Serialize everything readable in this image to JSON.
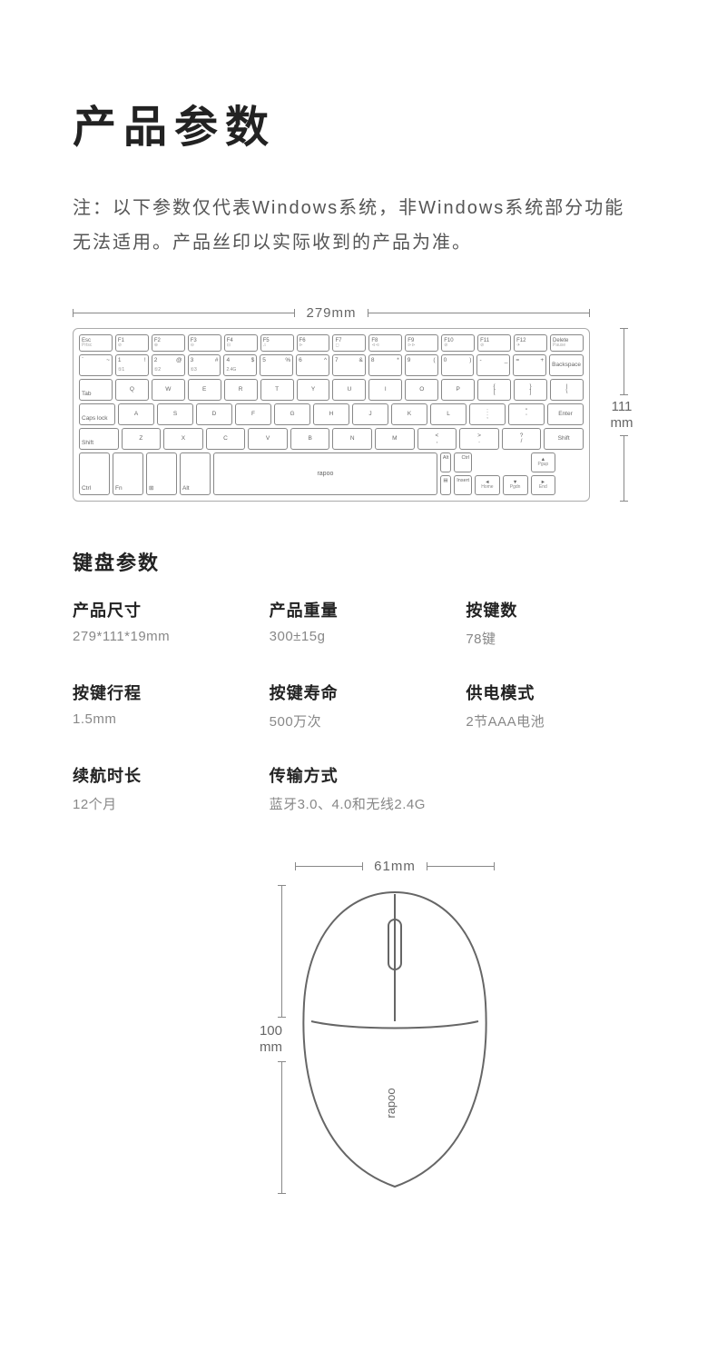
{
  "title": "产品参数",
  "note": "注：以下参数仅代表Windows系统，非Windows系统部分功能无法适用。产品丝印以实际收到的产品为准。",
  "keyboard": {
    "width_label": "279mm",
    "height_label_value": "111",
    "height_label_unit": "mm",
    "brand": "rapoo",
    "rows": {
      "func": [
        {
          "main": "Esc",
          "sub": "Prtsc"
        },
        {
          "main": "F1",
          "sub": "⊘"
        },
        {
          "main": "F2",
          "sub": "⊕"
        },
        {
          "main": "F3",
          "sub": "⊖"
        },
        {
          "main": "F4",
          "sub": "⊟"
        },
        {
          "main": "F5",
          "sub": "♫"
        },
        {
          "main": "F6",
          "sub": "⊳"
        },
        {
          "main": "F7",
          "sub": "◻"
        },
        {
          "main": "F8",
          "sub": "⊲⊲"
        },
        {
          "main": "F9",
          "sub": "⊳⊳"
        },
        {
          "main": "F10",
          "sub": "⊘"
        },
        {
          "main": "F11",
          "sub": "⊘"
        },
        {
          "main": "F12",
          "sub": "✈"
        },
        {
          "main": "Delete",
          "sub": "Pause"
        }
      ],
      "num": [
        {
          "tl": "`",
          "tr": "~",
          "bl": ""
        },
        {
          "tl": "1",
          "tr": "!",
          "bl": "①1"
        },
        {
          "tl": "2",
          "tr": "@",
          "bl": "①2"
        },
        {
          "tl": "3",
          "tr": "#",
          "bl": "①3"
        },
        {
          "tl": "4",
          "tr": "$",
          "bl": "2.4G"
        },
        {
          "tl": "5",
          "tr": "%",
          "bl": ""
        },
        {
          "tl": "6",
          "tr": "^",
          "bl": ""
        },
        {
          "tl": "7",
          "tr": "&",
          "bl": ""
        },
        {
          "tl": "8",
          "tr": "*",
          "bl": ""
        },
        {
          "tl": "9",
          "tr": "(",
          "bl": ""
        },
        {
          "tl": "0",
          "tr": ")",
          "bl": ""
        },
        {
          "tl": "-",
          "tr": "_",
          "bl": ""
        },
        {
          "tl": "=",
          "tr": "+",
          "bl": ""
        }
      ],
      "num_last": "Backspace",
      "qw_first": "Tab",
      "qw": [
        "Q",
        "W",
        "E",
        "R",
        "T",
        "Y",
        "U",
        "I",
        "O",
        "P"
      ],
      "qw_brackets": [
        {
          "t": "{",
          "b": "["
        },
        {
          "t": "}",
          "b": "]"
        },
        {
          "t": "|",
          "b": "\\"
        }
      ],
      "as_first": "Caps lock",
      "as": [
        "A",
        "S",
        "D",
        "F",
        "G",
        "H",
        "J",
        "K",
        "L"
      ],
      "as_punct": [
        {
          "t": ":",
          "b": ";"
        },
        {
          "t": "\"",
          "b": "'"
        }
      ],
      "as_last": "Enter",
      "zx_first": "Shift",
      "zx": [
        "Z",
        "X",
        "C",
        "V",
        "B",
        "N",
        "M"
      ],
      "zx_punct": [
        {
          "t": "<",
          "b": ","
        },
        {
          "t": ">",
          "b": "."
        },
        {
          "t": "?",
          "b": "/"
        }
      ],
      "zx_last": "Shift",
      "bottom": [
        "Ctrl",
        "Fn",
        "⊞",
        "Alt"
      ],
      "bottom_right": [
        "Alt",
        "Ctrl"
      ],
      "bottom_menu": "▤",
      "bottom_insert": "Insert",
      "arrows": [
        {
          "t": "▲",
          "b": "Pgup"
        },
        {
          "t": "◄",
          "b": "Home"
        },
        {
          "t": "▼",
          "b": "Pgdn"
        },
        {
          "t": "►",
          "b": "End"
        }
      ]
    }
  },
  "kb_section_title": "键盘参数",
  "specs": [
    {
      "label": "产品尺寸",
      "value": "279*111*19mm"
    },
    {
      "label": "产品重量",
      "value": "300±15g"
    },
    {
      "label": "按键数",
      "value": "78键"
    },
    {
      "label": "按键行程",
      "value": "1.5mm"
    },
    {
      "label": "按键寿命",
      "value": "500万次"
    },
    {
      "label": "供电模式",
      "value": "2节AAA电池"
    },
    {
      "label": "续航时长",
      "value": "12个月"
    },
    {
      "label": "传输方式",
      "value": "蓝牙3.0、4.0和无线2.4G"
    }
  ],
  "mouse": {
    "width_label": "61mm",
    "height_value": "100",
    "height_unit": "mm",
    "brand": "rapoo"
  },
  "colors": {
    "text_primary": "#222222",
    "text_secondary": "#888888",
    "border": "#888888"
  }
}
